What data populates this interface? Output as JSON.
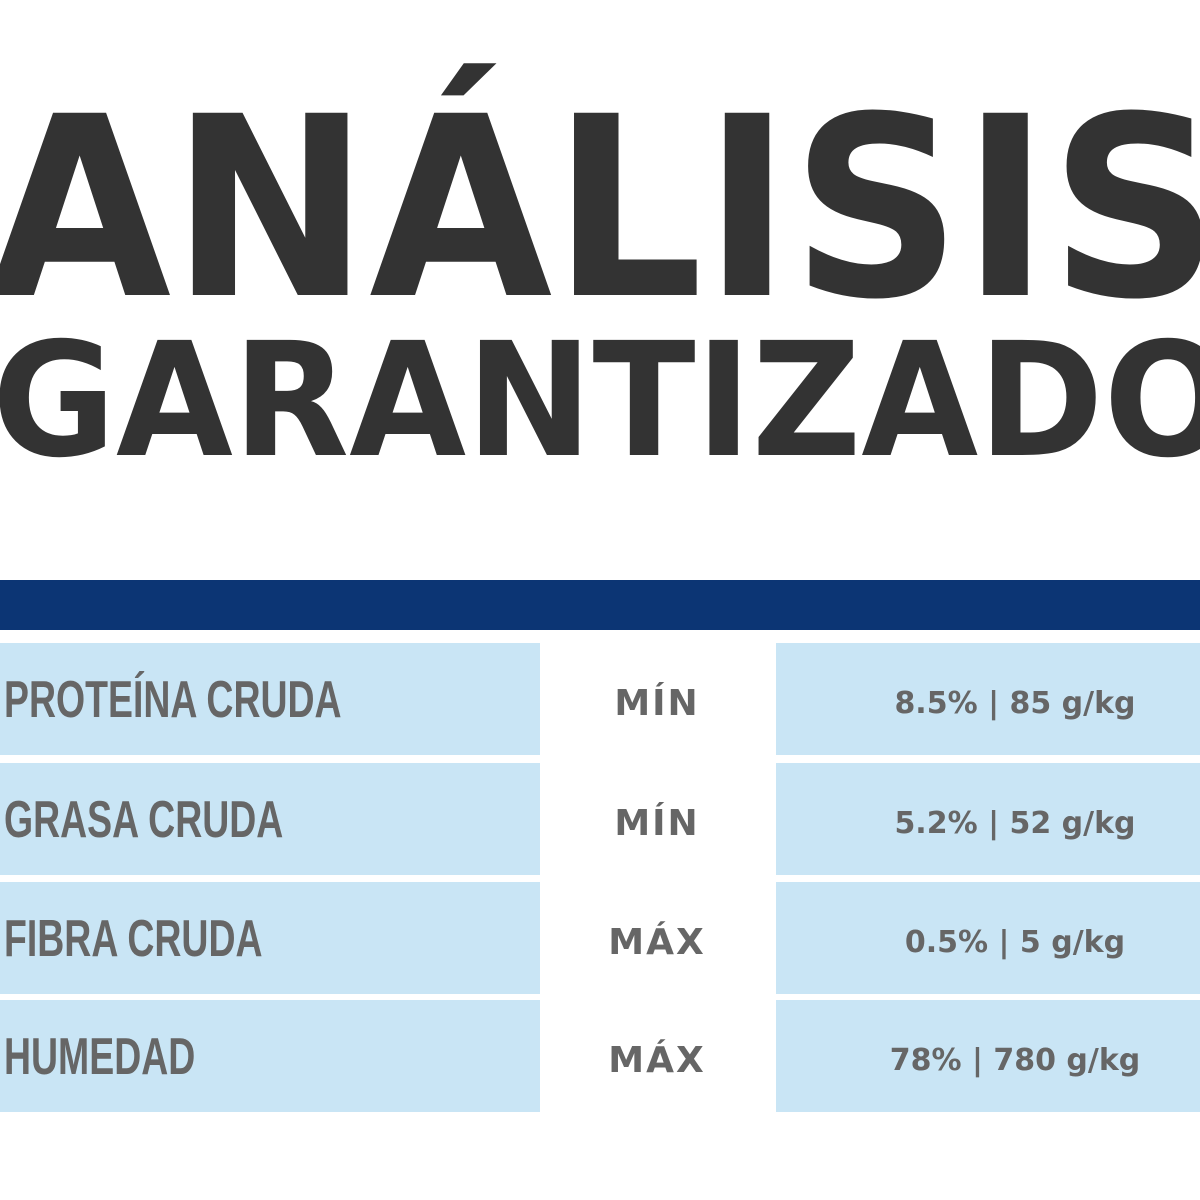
{
  "header": {
    "title_lines": [
      "ANÁLISIS",
      "GARANTIZADO"
    ]
  },
  "table": {
    "rows": [
      [
        "PROTEÍNA CRUDA",
        "MÍN",
        "8.5% | 85 g/kg"
      ],
      [
        "GRASA CRUDA",
        "MÍN",
        "5.2% | 52 g/kg"
      ],
      [
        "FIBRA CRUDA",
        "MÁX",
        "0.5% | 5 g/kg"
      ],
      [
        "HUMEDAD",
        "MÁX",
        "78% | 780 g/kg"
      ]
    ]
  }
}
